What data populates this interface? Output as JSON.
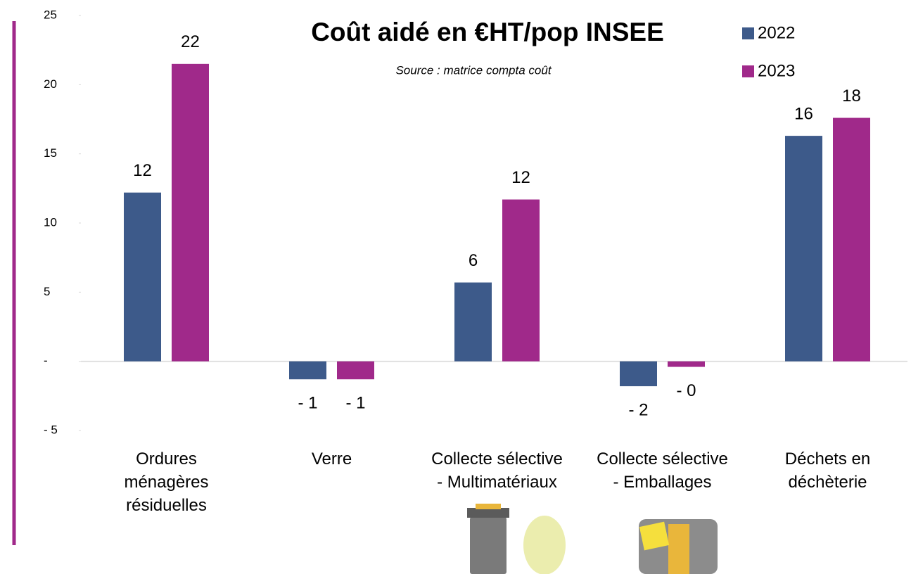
{
  "chart_data": {
    "type": "bar",
    "title": "Coût aidé en €HT/pop INSEE",
    "subtitle": "Source : matrice compta coût",
    "categories": [
      "Ordures\nménagères\nrésiduelles",
      "Verre",
      "Collecte sélective\n- Multimatériaux",
      "Collecte sélective\n- Emballages",
      "Déchets en\ndéchèterie"
    ],
    "series": [
      {
        "name": "2022",
        "color": "#3d5a8a",
        "values": [
          12.2,
          -1.3,
          5.7,
          -1.8,
          16.3
        ],
        "value_labels": [
          "12",
          "- 1",
          "6",
          "- 2",
          "16"
        ]
      },
      {
        "name": "2023",
        "color": "#a0298a",
        "values": [
          21.5,
          -1.3,
          11.7,
          -0.4,
          17.6
        ],
        "value_labels": [
          "22",
          "- 1",
          "12",
          "- 0",
          "18"
        ]
      }
    ],
    "ylim": [
      -5,
      25
    ],
    "yticks": [
      {
        "value": -5,
        "label": "- 5"
      },
      {
        "value": 0,
        "label": "-"
      },
      5,
      10,
      15,
      20,
      25
    ],
    "legend": "top-right"
  }
}
